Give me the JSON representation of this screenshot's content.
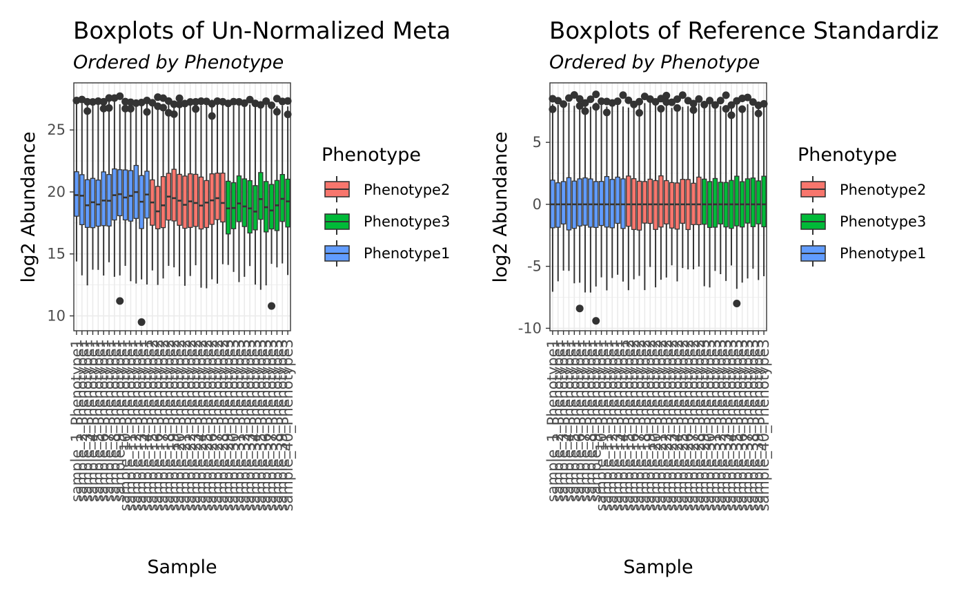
{
  "chart_data": [
    {
      "type": "boxplot",
      "title": "Boxplots of Un-Normalized Meta",
      "subtitle": "Ordered by  Phenotype",
      "xlabel": "Sample",
      "ylabel": "log2 Abundance",
      "ylim": [
        8.8,
        28.8
      ],
      "yticks": [
        10,
        15,
        20,
        25
      ],
      "ytick_labels": [
        "10",
        "15",
        "20",
        "25"
      ],
      "grid": true,
      "legend": {
        "title": "Phenotype",
        "placement": "right",
        "entries": [
          {
            "label": "Phenotype2",
            "color": "#F8766D"
          },
          {
            "label": "Phenotype3",
            "color": "#00BA38"
          },
          {
            "label": "Phenotype1",
            "color": "#619CFF"
          }
        ]
      },
      "groups": [
        {
          "label": "Phenotype1",
          "count": 14,
          "color": "#619CFF",
          "median": 19.4,
          "q1": 17.4,
          "q3": 21.5,
          "lower": 13.5,
          "upper": 27.3
        },
        {
          "label": "Phenotype2",
          "count": 14,
          "color": "#F8766D",
          "median": 19.1,
          "q1": 17.3,
          "q3": 21.2,
          "lower": 13.3,
          "upper": 27.2
        },
        {
          "label": "Phenotype3",
          "count": 12,
          "color": "#00BA38",
          "median": 19.0,
          "q1": 17.2,
          "q3": 21.1,
          "lower": 13.2,
          "upper": 27.1
        }
      ],
      "outliers": [
        {
          "sample": 8,
          "value": 11.2
        },
        {
          "sample": 12,
          "value": 9.5
        },
        {
          "sample": 36,
          "value": 10.8
        }
      ],
      "xtick_labels": [
        "sample_1_Phenotype1",
        "sample_2_Phenotype1",
        "sample_3_Phenotype1",
        "sample_4_Phenotype1",
        "sample_5_Phenotype1",
        "sample_6_Phenotype1",
        "sample_7_Phenotype1",
        "sample_8_Phenotype1",
        "sample_9_Phenotype1",
        "sample_10_Phenotype1",
        "sample_11_Phenotype1",
        "sample_12_Phenotype1",
        "sample_13_Phenotype1",
        "sample_14_Phenotype1",
        "sample_15_Phenotype2",
        "sample_16_Phenotype2",
        "sample_17_Phenotype2",
        "sample_18_Phenotype2",
        "sample_19_Phenotype2",
        "sample_20_Phenotype2",
        "sample_21_Phenotype2",
        "sample_22_Phenotype2",
        "sample_23_Phenotype2",
        "sample_24_Phenotype2",
        "sample_25_Phenotype2",
        "sample_26_Phenotype2",
        "sample_27_Phenotype2",
        "sample_28_Phenotype2",
        "sample_29_Phenotype3",
        "sample_30_Phenotype3",
        "sample_31_Phenotype3",
        "sample_32_Phenotype3",
        "sample_33_Phenotype3",
        "sample_34_Phenotype3",
        "sample_35_Phenotype3",
        "sample_36_Phenotype3",
        "sample_37_Phenotype3",
        "sample_38_Phenotype3",
        "sample_39_Phenotype3",
        "sample_40_Phenotype3"
      ]
    },
    {
      "type": "boxplot",
      "title": "Boxplots of Reference Standardiz",
      "subtitle": "Ordered by  Phenotype",
      "xlabel": "Sample",
      "ylabel": "log2 Abundance",
      "ylim": [
        -10.2,
        9.8
      ],
      "yticks": [
        -10,
        -5,
        0,
        5
      ],
      "ytick_labels": [
        "-10",
        "-5",
        "0",
        "5"
      ],
      "grid": true,
      "legend": {
        "title": "Phenotype",
        "placement": "right",
        "entries": [
          {
            "label": "Phenotype2",
            "color": "#F8766D"
          },
          {
            "label": "Phenotype3",
            "color": "#00BA38"
          },
          {
            "label": "Phenotype1",
            "color": "#619CFF"
          }
        ]
      },
      "groups": [
        {
          "label": "Phenotype1",
          "count": 14,
          "color": "#619CFF",
          "median": 0,
          "q1": -1.8,
          "q3": 2.0,
          "lower": -6.2,
          "upper": 8.1
        },
        {
          "label": "Phenotype2",
          "count": 14,
          "color": "#F8766D",
          "median": 0,
          "q1": -1.8,
          "q3": 2.0,
          "lower": -6.0,
          "upper": 8.0
        },
        {
          "label": "Phenotype3",
          "count": 12,
          "color": "#00BA38",
          "median": 0,
          "q1": -1.8,
          "q3": 2.0,
          "lower": -5.8,
          "upper": 8.0
        }
      ],
      "outliers": [
        {
          "sample": 5,
          "value": -8.4
        },
        {
          "sample": 8,
          "value": -9.4
        },
        {
          "sample": 34,
          "value": -8.0
        }
      ],
      "xtick_labels": [
        "sample_1_Phenotype1",
        "sample_2_Phenotype1",
        "sample_3_Phenotype1",
        "sample_4_Phenotype1",
        "sample_5_Phenotype1",
        "sample_6_Phenotype1",
        "sample_7_Phenotype1",
        "sample_8_Phenotype1",
        "sample_9_Phenotype1",
        "sample_10_Phenotype1",
        "sample_11_Phenotype1",
        "sample_12_Phenotype1",
        "sample_13_Phenotype1",
        "sample_14_Phenotype1",
        "sample_15_Phenotype2",
        "sample_16_Phenotype2",
        "sample_17_Phenotype2",
        "sample_18_Phenotype2",
        "sample_19_Phenotype2",
        "sample_20_Phenotype2",
        "sample_21_Phenotype2",
        "sample_22_Phenotype2",
        "sample_23_Phenotype2",
        "sample_24_Phenotype2",
        "sample_25_Phenotype2",
        "sample_26_Phenotype2",
        "sample_27_Phenotype2",
        "sample_28_Phenotype2",
        "sample_29_Phenotype3",
        "sample_30_Phenotype3",
        "sample_31_Phenotype3",
        "sample_32_Phenotype3",
        "sample_33_Phenotype3",
        "sample_34_Phenotype3",
        "sample_35_Phenotype3",
        "sample_36_Phenotype3",
        "sample_37_Phenotype3",
        "sample_38_Phenotype3",
        "sample_39_Phenotype3",
        "sample_40_Phenotype3"
      ]
    }
  ]
}
